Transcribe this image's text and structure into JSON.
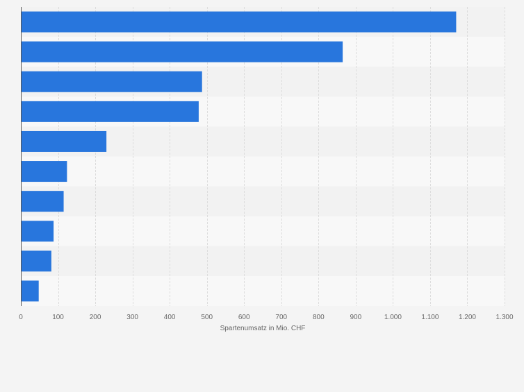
{
  "chart_data": {
    "type": "bar",
    "orientation": "horizontal",
    "categories": [
      "",
      "",
      "",
      "",
      "",
      "",
      "",
      "",
      "",
      ""
    ],
    "values": [
      1170,
      865,
      487,
      478,
      230,
      124,
      115,
      88,
      82,
      48
    ],
    "xlabel": "Spartenumsatz in Mio. CHF",
    "ylabel": "",
    "xlim": [
      0,
      1300
    ],
    "x_ticks": [
      0,
      100,
      200,
      300,
      400,
      500,
      600,
      700,
      800,
      900,
      1000,
      1100,
      1200,
      1300
    ],
    "x_tick_labels": [
      "0",
      "100",
      "200",
      "300",
      "400",
      "500",
      "600",
      "700",
      "800",
      "900",
      "1.000",
      "1.100",
      "1.200",
      "1.300"
    ],
    "grid": true,
    "legend": "none",
    "colors": {
      "bar": "#2876dd",
      "background": "#f4f4f4",
      "band_light": "#f8f8f8",
      "band_dark": "#f2f2f2",
      "grid": "#dcdcdc",
      "axis": "#555555",
      "text": "#666666"
    }
  }
}
